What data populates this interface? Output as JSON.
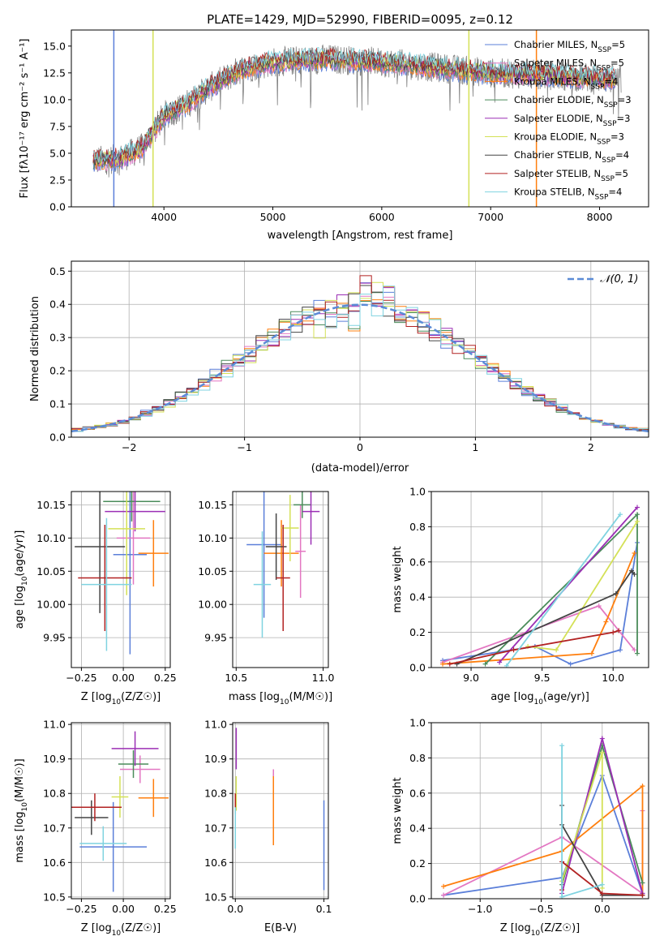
{
  "colors": {
    "Chabrier MILES": "#5b7fd9",
    "Salpeter MILES": "#e377c2",
    "Kroupa MILES": "#ff7f0e",
    "Chabrier ELODIE": "#4a8c5a",
    "Salpeter ELODIE": "#9b2fb5",
    "Kroupa ELODIE": "#d4e157",
    "Chabrier STELIB": "#444444",
    "Salpeter STELIB": "#b22222",
    "Kroupa STELIB": "#7fd3e0",
    "gauss": "#5b8bd6",
    "spectrum": "#808080"
  },
  "chart_data": [
    {
      "id": "spectrum",
      "type": "line",
      "title": "PLATE=1429, MJD=52990, FIBERID=0095, z=0.12",
      "xlabel": "wavelength [Angstrom, rest frame]",
      "ylabel": "Flux [fλ10⁻¹⁷ erg cm⁻² s⁻¹ A⁻¹]",
      "xlim": [
        3150,
        8450
      ],
      "ylim": [
        0,
        16.5
      ],
      "xticks": [
        4000,
        5000,
        6000,
        7000,
        8000
      ],
      "yticks": [
        0.0,
        2.5,
        5.0,
        7.5,
        10.0,
        12.5,
        15.0
      ],
      "legend_position": "top-right",
      "legend": [
        {
          "base": "Chabrier MILES, N",
          "sub": "SSP",
          "tail": "=5"
        },
        {
          "base": "Salpeter MILES, N",
          "sub": "SSP",
          "tail": "=5"
        },
        {
          "base": "Kroupa MILES, N",
          "sub": "SSP",
          "tail": "=4"
        },
        {
          "base": "Chabrier ELODIE, N",
          "sub": "SSP",
          "tail": "=3"
        },
        {
          "base": "Salpeter ELODIE, N",
          "sub": "SSP",
          "tail": "=3"
        },
        {
          "base": "Kroupa ELODIE, N",
          "sub": "SSP",
          "tail": "=3"
        },
        {
          "base": "Chabrier STELIB, N",
          "sub": "SSP",
          "tail": "=4"
        },
        {
          "base": "Salpeter STELIB, N",
          "sub": "SSP",
          "tail": "=5"
        },
        {
          "base": "Kroupa STELIB, N",
          "sub": "SSP",
          "tail": "=4"
        }
      ],
      "data_range_x": [
        3350,
        8200
      ],
      "continuum": [
        [
          3350,
          4.3
        ],
        [
          3600,
          4.5
        ],
        [
          3800,
          5.5
        ],
        [
          4000,
          8.5
        ],
        [
          4200,
          9.5
        ],
        [
          4400,
          11.0
        ],
        [
          4700,
          12.8
        ],
        [
          5000,
          13.5
        ],
        [
          5500,
          13.8
        ],
        [
          6000,
          13.5
        ],
        [
          6500,
          13.0
        ],
        [
          7000,
          12.5
        ],
        [
          7500,
          12.3
        ],
        [
          8000,
          12.0
        ],
        [
          8200,
          11.8
        ]
      ],
      "model_drops": [
        {
          "model": "Chabrier MILES",
          "x": 3540
        },
        {
          "model": "Kroupa MILES",
          "x": 7420
        },
        {
          "model": "Kroupa ELODIE",
          "x": 3900
        },
        {
          "model": "Kroupa ELODIE",
          "x": 6800
        }
      ]
    },
    {
      "id": "residuals",
      "type": "histogram",
      "xlabel": "(data-model)/error",
      "ylabel": "Normed distribution",
      "xlim": [
        -2.5,
        2.5
      ],
      "ylim": [
        0,
        0.53
      ],
      "xticks": [
        -2,
        -1,
        0,
        1,
        2
      ],
      "yticks": [
        0.0,
        0.1,
        0.2,
        0.3,
        0.4,
        0.5
      ],
      "grid": true,
      "legend_position": "top-right",
      "legend": "𝒩(0, 1)",
      "bin_width": 0.1
    },
    {
      "id": "age_vs_Z",
      "type": "errorbar",
      "xlabel_base": "Z [log",
      "xlabel_sub": "10",
      "xlabel_tail": "(Z/Z☉)]",
      "ylabel_base": "age  [log",
      "ylabel_sub": "10",
      "ylabel_tail": "(age/yr)]",
      "xlim": [
        -0.31,
        0.28
      ],
      "ylim": [
        9.905,
        10.17
      ],
      "xticks": [
        -0.25,
        0.0,
        0.25
      ],
      "yticks": [
        9.95,
        10.0,
        10.05,
        10.1,
        10.15
      ],
      "grid": true,
      "points": [
        {
          "model": "Chabrier MILES",
          "x": 0.04,
          "xerr": 0.1,
          "y": 10.075,
          "yerr": 0.15
        },
        {
          "model": "Salpeter MILES",
          "x": 0.06,
          "xerr": 0.1,
          "y": 10.1,
          "yerr": 0.07
        },
        {
          "model": "Kroupa MILES",
          "x": 0.18,
          "xerr": 0.09,
          "y": 10.077,
          "yerr": 0.05
        },
        {
          "model": "Chabrier ELODIE",
          "x": 0.05,
          "xerr": 0.17,
          "y": 10.155,
          "yerr": 0.03
        },
        {
          "model": "Salpeter ELODIE",
          "x": 0.07,
          "xerr": 0.18,
          "y": 10.14,
          "yerr": 0.03
        },
        {
          "model": "Kroupa ELODIE",
          "x": 0.02,
          "xerr": 0.11,
          "y": 10.114,
          "yerr": 0.1
        },
        {
          "model": "Chabrier STELIB",
          "x": -0.14,
          "xerr": 0.15,
          "y": 10.087,
          "yerr": 0.1
        },
        {
          "model": "Salpeter STELIB",
          "x": -0.11,
          "xerr": 0.16,
          "y": 10.04,
          "yerr": 0.08
        },
        {
          "model": "Kroupa STELIB",
          "x": -0.1,
          "xerr": 0.15,
          "y": 10.03,
          "yerr": 0.1
        }
      ]
    },
    {
      "id": "age_vs_mass",
      "type": "errorbar",
      "xlabel_base": "mass [log",
      "xlabel_sub": "10",
      "xlabel_tail": "(M/M☉)]",
      "xlim": [
        10.48,
        11.03
      ],
      "ylim": [
        9.905,
        10.17
      ],
      "xticks": [
        10.5,
        11.0
      ],
      "yticks": [
        9.95,
        10.0,
        10.05,
        10.1,
        10.15
      ],
      "grid": true,
      "points": [
        {
          "model": "Chabrier MILES",
          "x": 10.66,
          "xerr": 0.1,
          "y": 10.09,
          "yerr": 0.11
        },
        {
          "model": "Salpeter MILES",
          "x": 10.87,
          "xerr": 0.03,
          "y": 10.08,
          "yerr": 0.07
        },
        {
          "model": "Kroupa MILES",
          "x": 10.76,
          "xerr": 0.1,
          "y": 10.077,
          "yerr": 0.05
        },
        {
          "model": "Chabrier ELODIE",
          "x": 10.88,
          "xerr": 0.05,
          "y": 10.15,
          "yerr": 0.02
        },
        {
          "model": "Salpeter ELODIE",
          "x": 10.93,
          "xerr": 0.05,
          "y": 10.14,
          "yerr": 0.05
        },
        {
          "model": "Kroupa ELODIE",
          "x": 10.81,
          "xerr": 0.05,
          "y": 10.115,
          "yerr": 0.05
        },
        {
          "model": "Chabrier STELIB",
          "x": 10.73,
          "xerr": 0.06,
          "y": 10.087,
          "yerr": 0.05
        },
        {
          "model": "Salpeter STELIB",
          "x": 10.77,
          "xerr": 0.04,
          "y": 10.04,
          "yerr": 0.08
        },
        {
          "model": "Kroupa STELIB",
          "x": 10.65,
          "xerr": 0.05,
          "y": 10.03,
          "yerr": 0.08
        }
      ]
    },
    {
      "id": "weight_vs_age",
      "type": "line",
      "xlabel_base": "age  [log",
      "xlabel_sub": "10",
      "xlabel_tail": "(age/yr)]",
      "ylabel": "mass weight",
      "xlim": [
        8.72,
        10.25
      ],
      "ylim": [
        0,
        1.0
      ],
      "xticks": [
        9.0,
        9.5,
        10.0
      ],
      "yticks": [
        0.0,
        0.2,
        0.4,
        0.6,
        0.8,
        1.0
      ],
      "grid": true,
      "series": [
        {
          "model": "Chabrier MILES",
          "x": [
            8.8,
            9.45,
            9.7,
            10.05,
            10.17
          ],
          "y": [
            0.04,
            0.12,
            0.02,
            0.1,
            0.71
          ]
        },
        {
          "model": "Salpeter MILES",
          "x": [
            8.8,
            9.9,
            10.15
          ],
          "y": [
            0.03,
            0.35,
            0.1
          ]
        },
        {
          "model": "Kroupa MILES",
          "x": [
            8.8,
            9.85,
            9.95,
            10.15
          ],
          "y": [
            0.02,
            0.08,
            0.26,
            0.65
          ]
        },
        {
          "model": "Chabrier ELODIE",
          "x": [
            9.1,
            10.17,
            10.17
          ],
          "y": [
            0.02,
            0.87,
            0.08
          ]
        },
        {
          "model": "Salpeter ELODIE",
          "x": [
            9.2,
            10.17
          ],
          "y": [
            0.03,
            0.91
          ]
        },
        {
          "model": "Kroupa ELODIE",
          "x": [
            9.4,
            9.6,
            10.17
          ],
          "y": [
            0.12,
            0.1,
            0.83
          ]
        },
        {
          "model": "Chabrier STELIB",
          "x": [
            8.9,
            10.02,
            10.13,
            10.15
          ],
          "y": [
            0.02,
            0.42,
            0.55,
            0.53
          ]
        },
        {
          "model": "Salpeter STELIB",
          "x": [
            8.85,
            9.3,
            10.0,
            10.04
          ],
          "y": [
            0.02,
            0.1,
            0.2,
            0.21
          ]
        },
        {
          "model": "Kroupa STELIB",
          "x": [
            9.25,
            10.05
          ],
          "y": [
            0.01,
            0.87
          ]
        }
      ]
    },
    {
      "id": "mass_vs_Z",
      "type": "errorbar",
      "xlabel_base": "Z [log",
      "xlabel_sub": "10",
      "xlabel_tail": "(Z/Z☉)]",
      "ylabel_base": "mass [log",
      "ylabel_sub": "10",
      "ylabel_tail": "(M/M☉)]",
      "xlim": [
        -0.31,
        0.28
      ],
      "ylim": [
        10.495,
        11.005
      ],
      "xticks": [
        -0.25,
        0.0,
        0.25
      ],
      "yticks": [
        10.5,
        10.6,
        10.7,
        10.8,
        10.9,
        11.0
      ],
      "grid": true,
      "points": [
        {
          "model": "Chabrier MILES",
          "x": -0.06,
          "xerr": 0.2,
          "y": 10.645,
          "yerr": 0.13
        },
        {
          "model": "Salpeter MILES",
          "x": 0.1,
          "xerr": 0.12,
          "y": 10.87,
          "yerr": 0.04
        },
        {
          "model": "Kroupa MILES",
          "x": 0.18,
          "xerr": 0.09,
          "y": 10.787,
          "yerr": 0.055
        },
        {
          "model": "Chabrier ELODIE",
          "x": 0.06,
          "xerr": 0.09,
          "y": 10.885,
          "yerr": 0.04
        },
        {
          "model": "Salpeter ELODIE",
          "x": 0.07,
          "xerr": 0.14,
          "y": 10.93,
          "yerr": 0.05
        },
        {
          "model": "Kroupa ELODIE",
          "x": -0.02,
          "xerr": 0.05,
          "y": 10.79,
          "yerr": 0.06
        },
        {
          "model": "Chabrier STELIB",
          "x": -0.19,
          "xerr": 0.1,
          "y": 10.73,
          "yerr": 0.05
        },
        {
          "model": "Salpeter STELIB",
          "x": -0.17,
          "xerr": 0.16,
          "y": 10.76,
          "yerr": 0.04
        },
        {
          "model": "Kroupa STELIB",
          "x": -0.12,
          "xerr": 0.14,
          "y": 10.655,
          "yerr": 0.05
        }
      ]
    },
    {
      "id": "mass_vs_ebv",
      "type": "errorbar",
      "xlabel": "E(B-V)",
      "xlim": [
        -0.003,
        0.105
      ],
      "ylim": [
        10.495,
        11.005
      ],
      "xticks": [
        0.0,
        0.1
      ],
      "yticks": [
        10.5,
        10.6,
        10.7,
        10.8,
        10.9,
        11.0
      ],
      "grid": true,
      "points": [
        {
          "model": "Chabrier MILES",
          "x": 0.1,
          "xerr": 0.0,
          "y": 10.65,
          "yerr": 0.13
        },
        {
          "model": "Salpeter MILES",
          "x": 0.043,
          "xerr": 0.0,
          "y": 10.84,
          "yerr": 0.03
        },
        {
          "model": "Kroupa MILES",
          "x": 0.043,
          "xerr": 0.0,
          "y": 10.75,
          "yerr": 0.1
        },
        {
          "model": "Salpeter ELODIE",
          "x": 0.001,
          "xerr": 0.0,
          "y": 10.93,
          "yerr": 0.06
        },
        {
          "model": "Kroupa ELODIE",
          "x": 0.001,
          "xerr": 0.0,
          "y": 10.8,
          "yerr": 0.05
        },
        {
          "model": "Salpeter STELIB",
          "x": 0.0,
          "xerr": 0.0,
          "y": 10.77,
          "yerr": 0.03
        },
        {
          "model": "Kroupa STELIB",
          "x": 0.0,
          "xerr": 0.0,
          "y": 10.7,
          "yerr": 0.06
        }
      ]
    },
    {
      "id": "weight_vs_Z",
      "type": "line",
      "xlabel_base": "Z [log",
      "xlabel_sub": "10",
      "xlabel_tail": "(Z/Z☉)]",
      "ylabel": "mass weight",
      "xlim": [
        -1.4,
        0.38
      ],
      "ylim": [
        0,
        1.0
      ],
      "xticks": [
        -1.0,
        -0.5,
        0.0
      ],
      "yticks": [
        0.0,
        0.2,
        0.4,
        0.6,
        0.8,
        1.0
      ],
      "grid": true,
      "series": [
        {
          "model": "Chabrier MILES",
          "x": [
            -1.3,
            -0.33,
            0.0,
            0.33
          ],
          "y": [
            0.02,
            0.12,
            0.7,
            0.03
          ]
        },
        {
          "model": "Salpeter MILES",
          "x": [
            -1.3,
            -0.33,
            0.33,
            0.33
          ],
          "y": [
            0.02,
            0.35,
            0.03,
            0.5
          ]
        },
        {
          "model": "Kroupa MILES",
          "x": [
            -1.3,
            -0.33,
            0.33,
            0.33
          ],
          "y": [
            0.07,
            0.27,
            0.64,
            0.02
          ]
        },
        {
          "model": "Chabrier ELODIE",
          "x": [
            -0.33,
            0.0,
            0.33
          ],
          "y": [
            0.08,
            0.87,
            0.09
          ]
        },
        {
          "model": "Salpeter ELODIE",
          "x": [
            -0.33,
            0.0,
            0.33
          ],
          "y": [
            0.03,
            0.91,
            0.03
          ]
        },
        {
          "model": "Kroupa ELODIE",
          "x": [
            -0.33,
            0.0,
            0.0
          ],
          "y": [
            0.1,
            0.83,
            0.06
          ]
        },
        {
          "model": "Chabrier STELIB",
          "x": [
            -0.33,
            -0.33,
            0.0,
            0.33
          ],
          "y": [
            0.53,
            0.42,
            0.02,
            0.02
          ]
        },
        {
          "model": "Salpeter STELIB",
          "x": [
            -0.33,
            -0.33,
            0.0,
            0.33
          ],
          "y": [
            0.05,
            0.21,
            0.03,
            0.02
          ]
        },
        {
          "model": "Kroupa STELIB",
          "x": [
            -0.33,
            -0.33,
            0.0
          ],
          "y": [
            0.87,
            0.01,
            0.08
          ]
        }
      ]
    }
  ]
}
